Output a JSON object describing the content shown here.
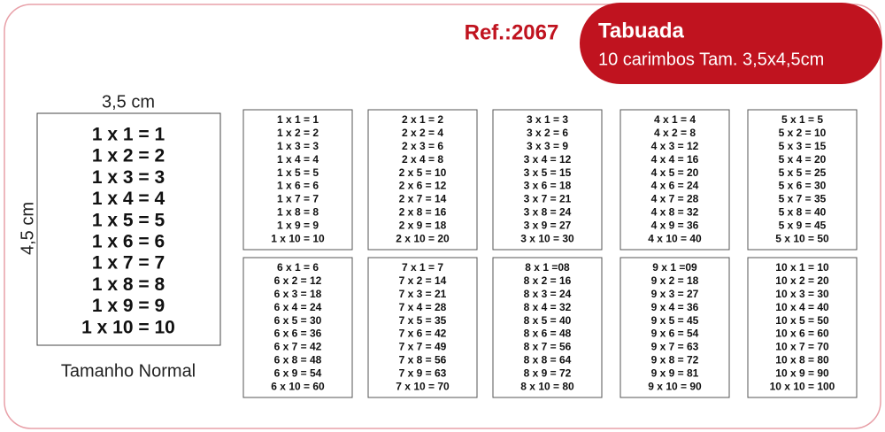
{
  "header": {
    "ref": "Ref.:2067",
    "title": "Tabuada",
    "subtitle": "10 carimbos Tam. 3,5x4,5cm"
  },
  "sample": {
    "width_label": "3,5 cm",
    "height_label": "4,5 cm",
    "caption": "Tamanho Normal",
    "lines": [
      "1 x 1 = 1",
      "1 x 2 = 2",
      "1 x 3 = 3",
      "1 x 4 = 4",
      "1 x 5 = 5",
      "1 x 6 = 6",
      "1 x 7 = 7",
      "1 x 8 = 8",
      "1 x 9 = 9",
      "1 x 10 = 10"
    ]
  },
  "stamps": [
    {
      "lines": [
        "1 x 1 = 1",
        "1 x 2 = 2",
        "1 x 3 = 3",
        "1 x 4 = 4",
        "1 x 5 = 5",
        "1 x 6 = 6",
        "1 x 7 = 7",
        "1 x 8 = 8",
        "1 x 9 = 9",
        "1 x 10 = 10"
      ]
    },
    {
      "lines": [
        "2 x 1 = 2",
        "2 x 2 = 4",
        "2 x 3 = 6",
        "2 x 4 = 8",
        "2 x 5 = 10",
        "2 x 6 = 12",
        "2 x 7 = 14",
        "2 x 8 = 16",
        "2 x 9 = 18",
        "2 x 10 = 20"
      ]
    },
    {
      "lines": [
        "3 x 1 = 3",
        "3 x 2 = 6",
        "3 x 3 = 9",
        "3 x 4 = 12",
        "3 x 5 = 15",
        "3 x 6 = 18",
        "3 x 7 = 21",
        "3 x 8 = 24",
        "3 x 9 = 27",
        "3 x 10 = 30"
      ]
    },
    {
      "lines": [
        "4 x 1 = 4",
        "4 x 2 = 8",
        "4 x 3 = 12",
        "4 x 4 = 16",
        "4 x 5 = 20",
        "4 x 6 = 24",
        "4 x 7 = 28",
        "4 x 8 = 32",
        "4 x 9 = 36",
        "4 x 10 = 40"
      ]
    },
    {
      "lines": [
        "5 x 1 = 5",
        "5 x 2 = 10",
        "5 x 3 = 15",
        "5 x 4 = 20",
        "5 x 5 = 25",
        "5 x 6 = 30",
        "5 x 7 = 35",
        "5 x 8 = 40",
        "5 x 9 = 45",
        "5 x 10 = 50"
      ]
    },
    {
      "lines": [
        "6 x 1 = 6",
        "6 x 2 = 12",
        "6 x 3 = 18",
        "6 x 4 = 24",
        "6 x 5 = 30",
        "6 x 6 = 36",
        "6 x 7 = 42",
        "6 x 8 = 48",
        "6 x 9 = 54",
        "6 x 10 = 60"
      ]
    },
    {
      "lines": [
        "7 x 1 = 7",
        "7 x 2 = 14",
        "7 x 3 = 21",
        "7 x 4 = 28",
        "7 x 5 = 35",
        "7 x 6 = 42",
        "7 x 7 = 49",
        "7 x 8 = 56",
        "7 x 9 = 63",
        "7 x 10 = 70"
      ]
    },
    {
      "lines": [
        "8 x 1 =08",
        "8 x 2 = 16",
        "8 x 3 = 24",
        "8 x 4 = 32",
        "8 x 5 = 40",
        "8 x 6 = 48",
        "8 x 7 = 56",
        "8 x 8 = 64",
        "8 x 9 = 72",
        "8 x 10 = 80"
      ]
    },
    {
      "lines": [
        "9 x 1 =09",
        "9 x 2 = 18",
        "9 x 3 = 27",
        "9 x 4 = 36",
        "9 x 5 = 45",
        "9 x 6 = 54",
        "9 x 7 = 63",
        "9 x 8 = 72",
        "9 x 9 = 81",
        "9 x 10 = 90"
      ]
    },
    {
      "lines": [
        "10 x 1 = 10",
        "10 x 2 = 20",
        "10 x 3 = 30",
        "10 x 4 = 40",
        "10 x 5 = 50",
        "10 x 6 = 60",
        "10 x 7 = 70",
        "10 x 8 = 80",
        "10 x 9 = 90",
        "10 x 10 = 100"
      ]
    }
  ]
}
